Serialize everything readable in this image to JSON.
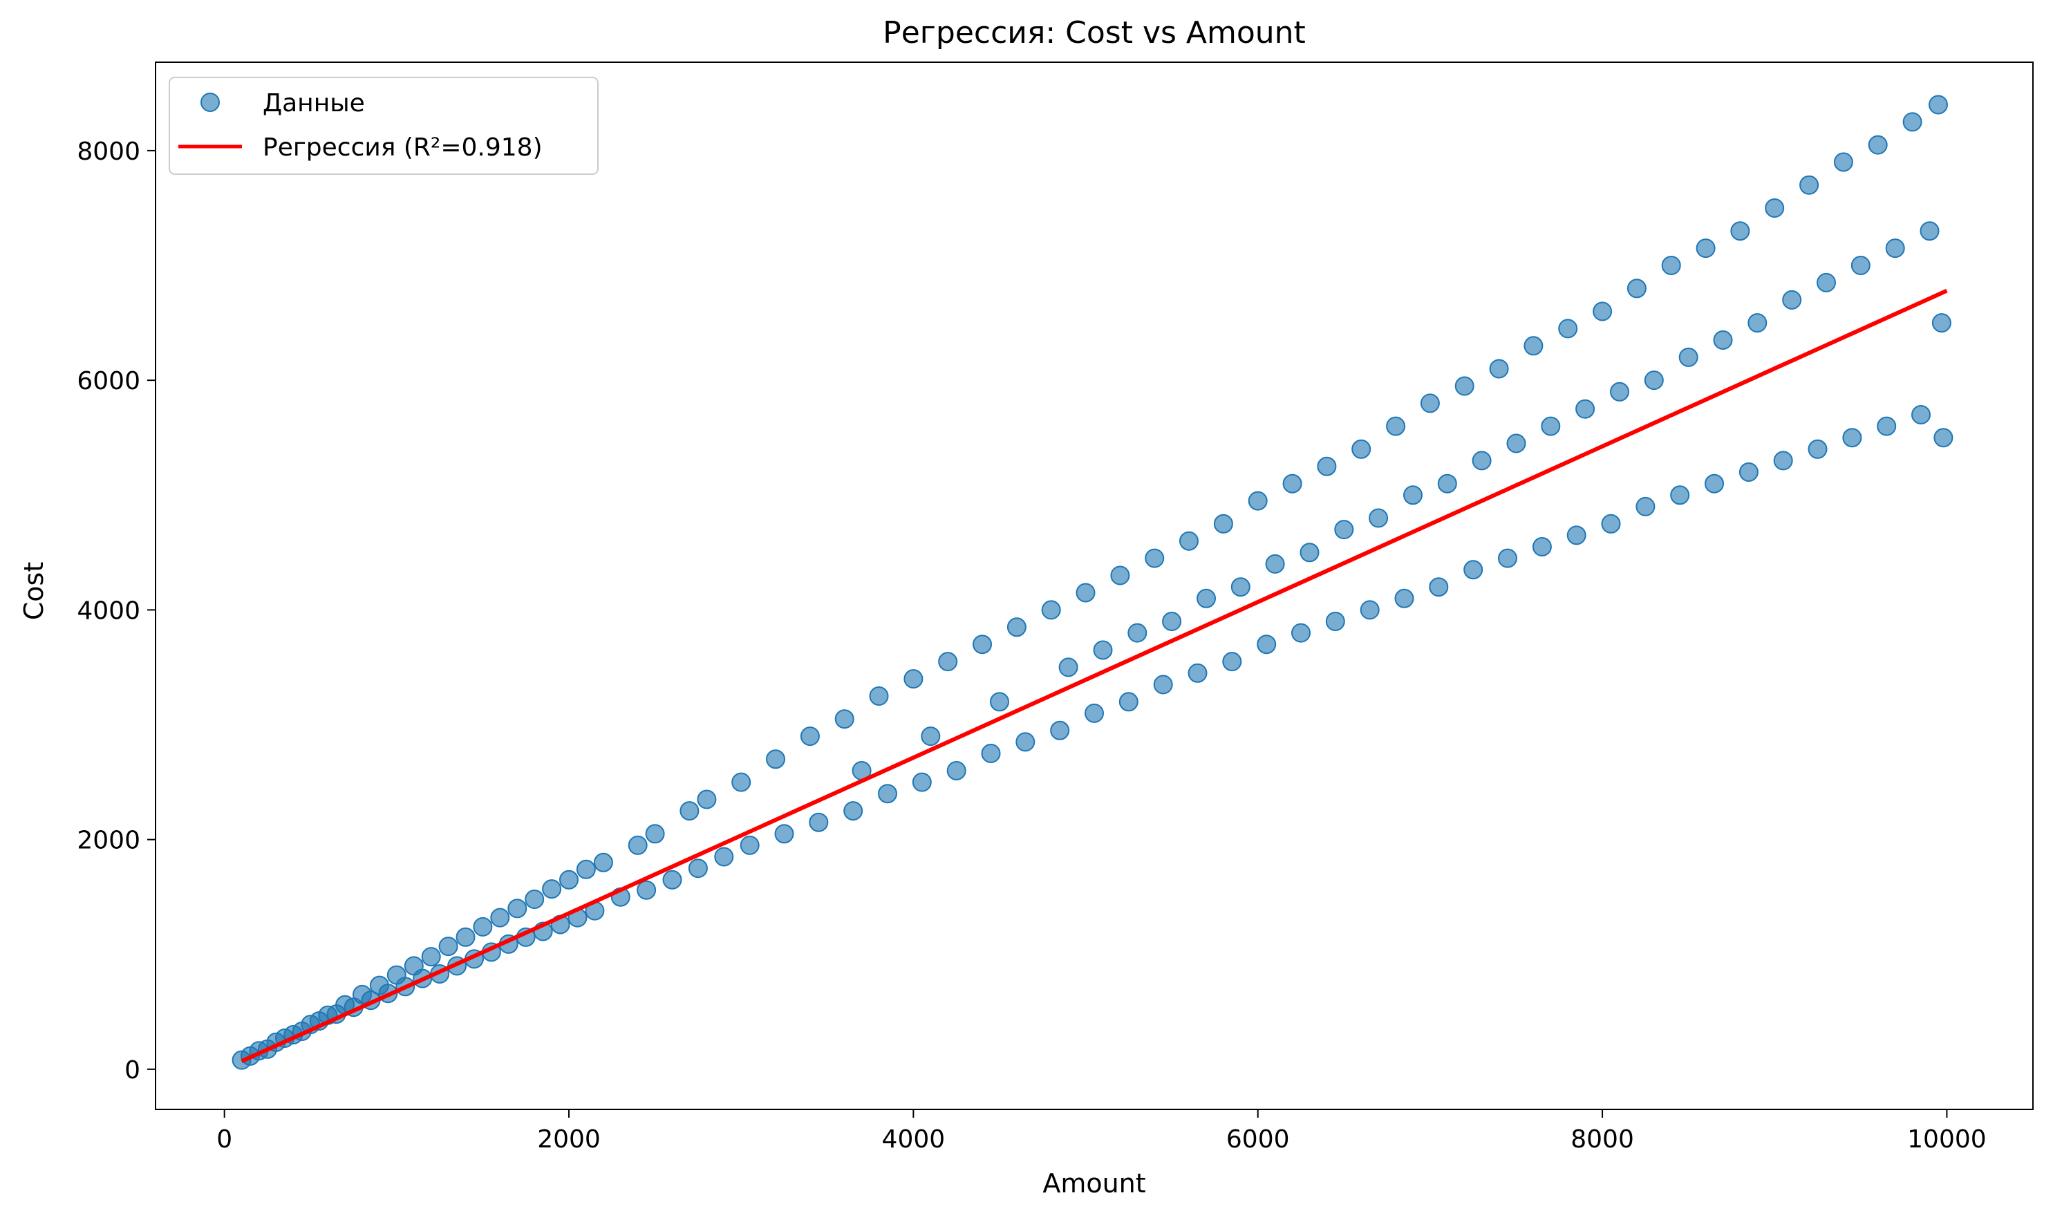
{
  "chart_data": {
    "type": "scatter",
    "title": "Регрессия: Cost vs Amount",
    "xlabel": "Amount",
    "ylabel": "Cost",
    "xlim": [
      -400,
      10500
    ],
    "ylim": [
      -350,
      8770
    ],
    "xticks": [
      0,
      2000,
      4000,
      6000,
      8000,
      10000
    ],
    "yticks": [
      0,
      2000,
      4000,
      6000,
      8000
    ],
    "grid": false,
    "legend_position": "top-left",
    "colors": {
      "scatter": "#1f77b4",
      "line": "#ff0000"
    },
    "series": [
      {
        "name": "Данные",
        "kind": "scatter",
        "points": [
          [
            100,
            80
          ],
          [
            150,
            115
          ],
          [
            200,
            160
          ],
          [
            250,
            175
          ],
          [
            300,
            235
          ],
          [
            350,
            270
          ],
          [
            400,
            300
          ],
          [
            450,
            330
          ],
          [
            500,
            390
          ],
          [
            550,
            420
          ],
          [
            600,
            470
          ],
          [
            650,
            480
          ],
          [
            700,
            560
          ],
          [
            750,
            540
          ],
          [
            800,
            650
          ],
          [
            850,
            600
          ],
          [
            900,
            730
          ],
          [
            950,
            660
          ],
          [
            1000,
            820
          ],
          [
            1050,
            720
          ],
          [
            1100,
            900
          ],
          [
            1150,
            790
          ],
          [
            1200,
            980
          ],
          [
            1250,
            830
          ],
          [
            1300,
            1070
          ],
          [
            1350,
            900
          ],
          [
            1400,
            1150
          ],
          [
            1450,
            960
          ],
          [
            1500,
            1240
          ],
          [
            1550,
            1020
          ],
          [
            1600,
            1320
          ],
          [
            1650,
            1090
          ],
          [
            1700,
            1400
          ],
          [
            1750,
            1150
          ],
          [
            1800,
            1480
          ],
          [
            1850,
            1200
          ],
          [
            1900,
            1570
          ],
          [
            1950,
            1260
          ],
          [
            2000,
            1650
          ],
          [
            2050,
            1320
          ],
          [
            2100,
            1740
          ],
          [
            2150,
            1380
          ],
          [
            2200,
            1800
          ],
          [
            2300,
            1500
          ],
          [
            2400,
            1950
          ],
          [
            2450,
            1560
          ],
          [
            2500,
            2050
          ],
          [
            2600,
            1650
          ],
          [
            2700,
            2250
          ],
          [
            2750,
            1750
          ],
          [
            2800,
            2350
          ],
          [
            2900,
            1850
          ],
          [
            3000,
            2500
          ],
          [
            3050,
            1950
          ],
          [
            3200,
            2700
          ],
          [
            3250,
            2050
          ],
          [
            3400,
            2900
          ],
          [
            3450,
            2150
          ],
          [
            3600,
            3050
          ],
          [
            3650,
            2250
          ],
          [
            3700,
            2600
          ],
          [
            3800,
            3250
          ],
          [
            3850,
            2400
          ],
          [
            4000,
            3400
          ],
          [
            4050,
            2500
          ],
          [
            4100,
            2900
          ],
          [
            4200,
            3550
          ],
          [
            4250,
            2600
          ],
          [
            4400,
            3700
          ],
          [
            4450,
            2750
          ],
          [
            4500,
            3200
          ],
          [
            4600,
            3850
          ],
          [
            4650,
            2850
          ],
          [
            4800,
            4000
          ],
          [
            4850,
            2950
          ],
          [
            4900,
            3500
          ],
          [
            5000,
            4150
          ],
          [
            5050,
            3100
          ],
          [
            5100,
            3650
          ],
          [
            5200,
            4300
          ],
          [
            5250,
            3200
          ],
          [
            5300,
            3800
          ],
          [
            5400,
            4450
          ],
          [
            5450,
            3350
          ],
          [
            5500,
            3900
          ],
          [
            5600,
            4600
          ],
          [
            5650,
            3450
          ],
          [
            5700,
            4100
          ],
          [
            5800,
            4750
          ],
          [
            5850,
            3550
          ],
          [
            5900,
            4200
          ],
          [
            6000,
            4950
          ],
          [
            6050,
            3700
          ],
          [
            6100,
            4400
          ],
          [
            6200,
            5100
          ],
          [
            6250,
            3800
          ],
          [
            6300,
            4500
          ],
          [
            6400,
            5250
          ],
          [
            6450,
            3900
          ],
          [
            6500,
            4700
          ],
          [
            6600,
            5400
          ],
          [
            6650,
            4000
          ],
          [
            6700,
            4800
          ],
          [
            6800,
            5600
          ],
          [
            6850,
            4100
          ],
          [
            6900,
            5000
          ],
          [
            7000,
            5800
          ],
          [
            7050,
            4200
          ],
          [
            7100,
            5100
          ],
          [
            7200,
            5950
          ],
          [
            7250,
            4350
          ],
          [
            7300,
            5300
          ],
          [
            7400,
            6100
          ],
          [
            7450,
            4450
          ],
          [
            7500,
            5450
          ],
          [
            7600,
            6300
          ],
          [
            7650,
            4550
          ],
          [
            7700,
            5600
          ],
          [
            7800,
            6450
          ],
          [
            7850,
            4650
          ],
          [
            7900,
            5750
          ],
          [
            8000,
            6600
          ],
          [
            8050,
            4750
          ],
          [
            8100,
            5900
          ],
          [
            8200,
            6800
          ],
          [
            8250,
            4900
          ],
          [
            8300,
            6000
          ],
          [
            8400,
            7000
          ],
          [
            8450,
            5000
          ],
          [
            8500,
            6200
          ],
          [
            8600,
            7150
          ],
          [
            8650,
            5100
          ],
          [
            8700,
            6350
          ],
          [
            8800,
            7300
          ],
          [
            8850,
            5200
          ],
          [
            8900,
            6500
          ],
          [
            9000,
            7500
          ],
          [
            9050,
            5300
          ],
          [
            9100,
            6700
          ],
          [
            9200,
            7700
          ],
          [
            9250,
            5400
          ],
          [
            9300,
            6850
          ],
          [
            9400,
            7900
          ],
          [
            9450,
            5500
          ],
          [
            9500,
            7000
          ],
          [
            9600,
            8050
          ],
          [
            9650,
            5600
          ],
          [
            9700,
            7150
          ],
          [
            9800,
            8250
          ],
          [
            9850,
            5700
          ],
          [
            9900,
            7300
          ],
          [
            9950,
            8400
          ],
          [
            9980,
            5500
          ],
          [
            9970,
            6500
          ]
        ]
      },
      {
        "name": "Регрессия (R²=0.918)",
        "kind": "line",
        "x": [
          100,
          10000
        ],
        "y": [
          70,
          6780
        ]
      }
    ]
  }
}
